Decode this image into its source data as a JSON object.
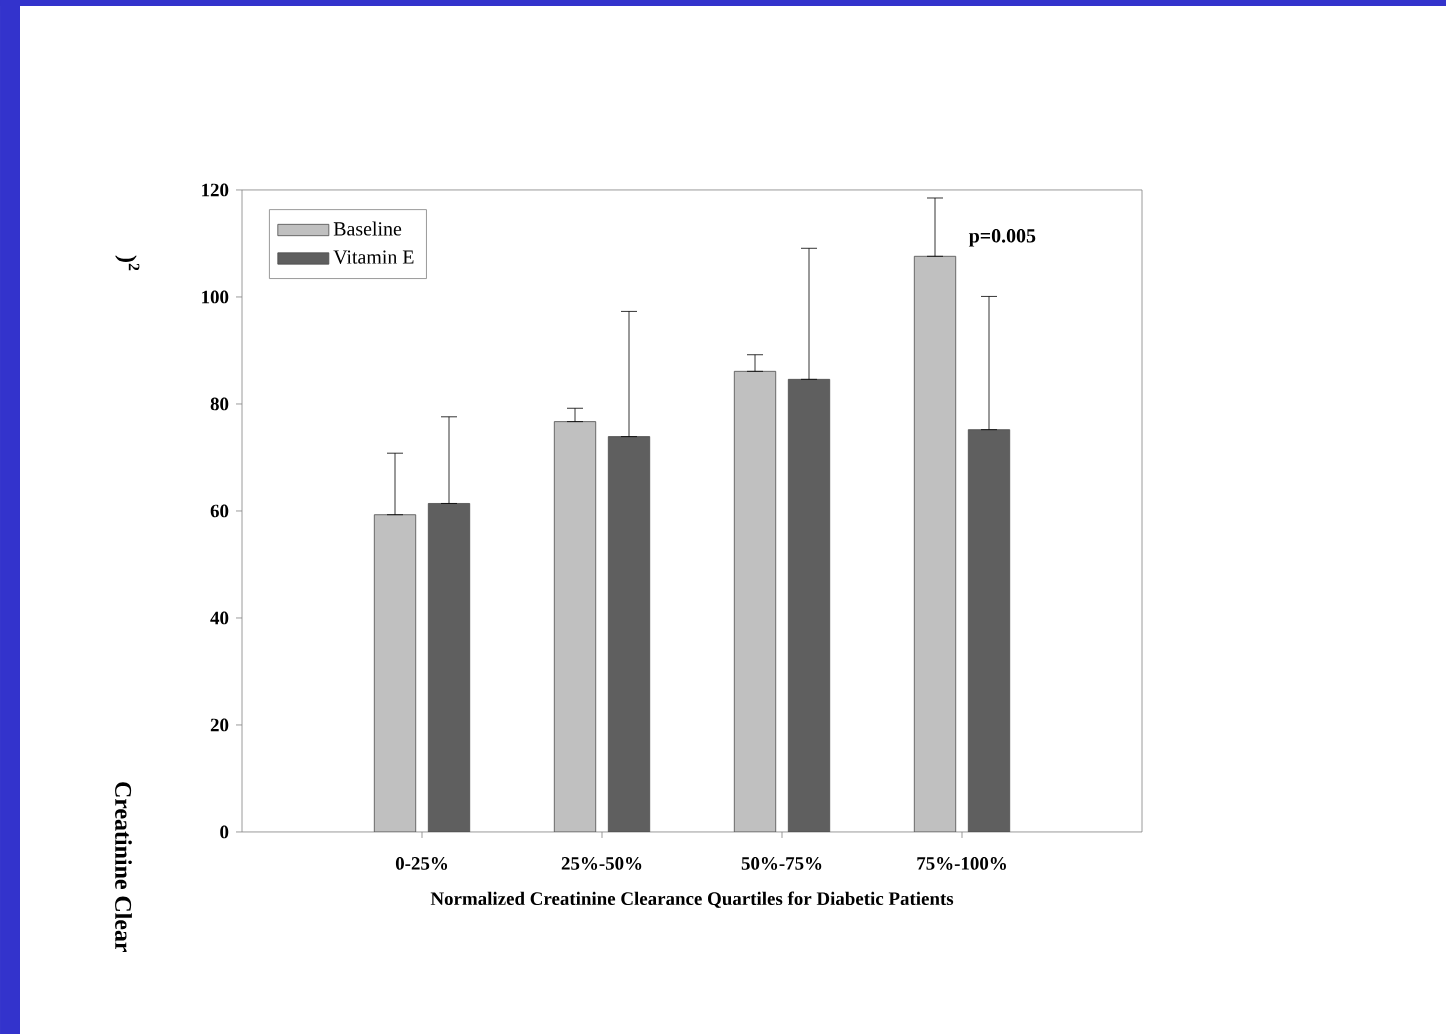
{
  "chart_data": {
    "type": "bar",
    "categories": [
      "0-25%",
      "25%-50%",
      "50%-75%",
      "75%-100%"
    ],
    "xlabel": "Normalized Creatinine Clearance Quartiles for Diabetic Patients",
    "ylabel": "Creatinine Clear",
    "series": [
      {
        "name": "Baseline",
        "color": "#c0c0c0",
        "values": [
          59.3,
          76.7,
          86.1,
          107.6
        ],
        "errors": [
          [
            59.3,
            70.8
          ],
          [
            76.7,
            79.2
          ],
          [
            86.1,
            89.2
          ],
          [
            107.6,
            118.5
          ]
        ]
      },
      {
        "name": "Vitamin E",
        "color": "#5f5f5f",
        "values": [
          61.4,
          73.9,
          84.6,
          75.2
        ],
        "errors": [
          [
            61.4,
            77.6
          ],
          [
            73.9,
            97.3
          ],
          [
            84.6,
            109.1
          ],
          [
            75.2,
            100.1
          ]
        ]
      }
    ],
    "ylim": [
      0,
      120
    ],
    "yticks": [
      0,
      20,
      40,
      60,
      80,
      100,
      120
    ],
    "annotations": [
      "p=0.005",
      ")$^{2}$"
    ],
    "legend": "top left",
    "grid": false
  }
}
